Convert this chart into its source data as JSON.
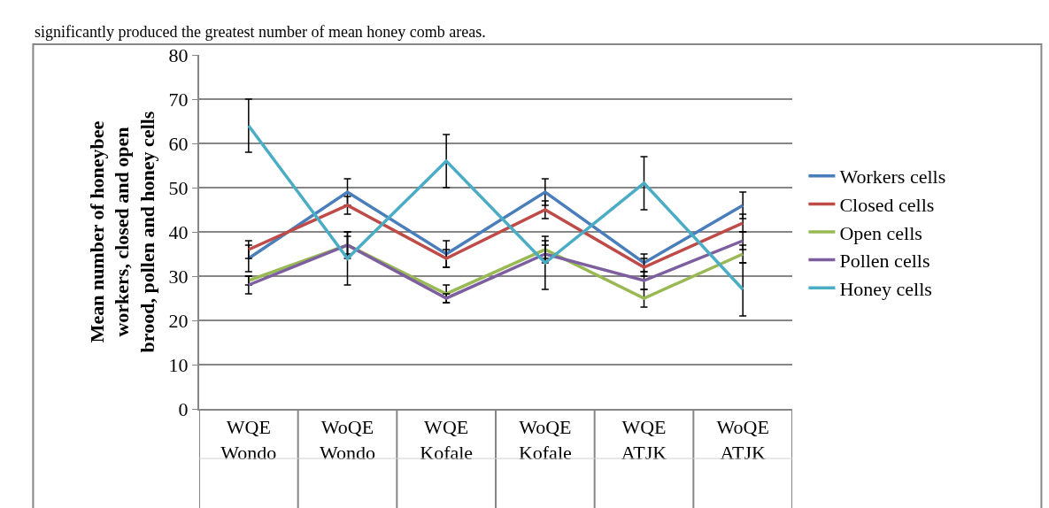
{
  "chart_data": {
    "type": "line",
    "ylabel": "Mean number of honeybee\nworkers, closed and open\nbrood, pollen and honey cells",
    "categories": [
      "WQE\nWondo",
      "WoQE\nWondo",
      "WQE\nKofale",
      "WoQE\nKofale",
      "WQE\nATJK",
      "WoQE\nATJK"
    ],
    "series": [
      {
        "name": "Workers cells",
        "color": "#4a7ebb",
        "values": [
          34,
          49,
          35,
          49,
          33,
          46
        ],
        "errors": [
          3,
          3,
          3,
          3,
          2,
          3
        ]
      },
      {
        "name": "Closed cells",
        "color": "#be4b48",
        "values": [
          36,
          46,
          34,
          45,
          32,
          42
        ],
        "errors": [
          2,
          2,
          2,
          2,
          2,
          2
        ]
      },
      {
        "name": "Open cells",
        "color": "#98b954",
        "values": [
          29,
          37,
          26,
          36,
          25,
          35
        ],
        "errors": [
          1,
          3,
          2,
          2,
          2,
          2
        ]
      },
      {
        "name": "Pollen cells",
        "color": "#7d5fa0",
        "values": [
          28,
          37,
          25,
          35,
          29,
          38
        ],
        "errors": [
          2,
          2,
          1,
          2,
          2,
          2
        ]
      },
      {
        "name": "Honey cells",
        "color": "#4bacc6",
        "values": [
          64,
          34,
          56,
          33,
          51,
          27
        ],
        "errors": [
          6,
          6,
          6,
          6,
          6,
          6
        ]
      }
    ],
    "ylim": [
      0,
      80
    ],
    "yticks": [
      0,
      10,
      20,
      30,
      40,
      50,
      60,
      70,
      80
    ],
    "grid": "y",
    "legend": "right",
    "marker": "none",
    "line_style": "solid",
    "annotations": [
      "significantly produced the greatest number of mean honey comb areas."
    ]
  }
}
